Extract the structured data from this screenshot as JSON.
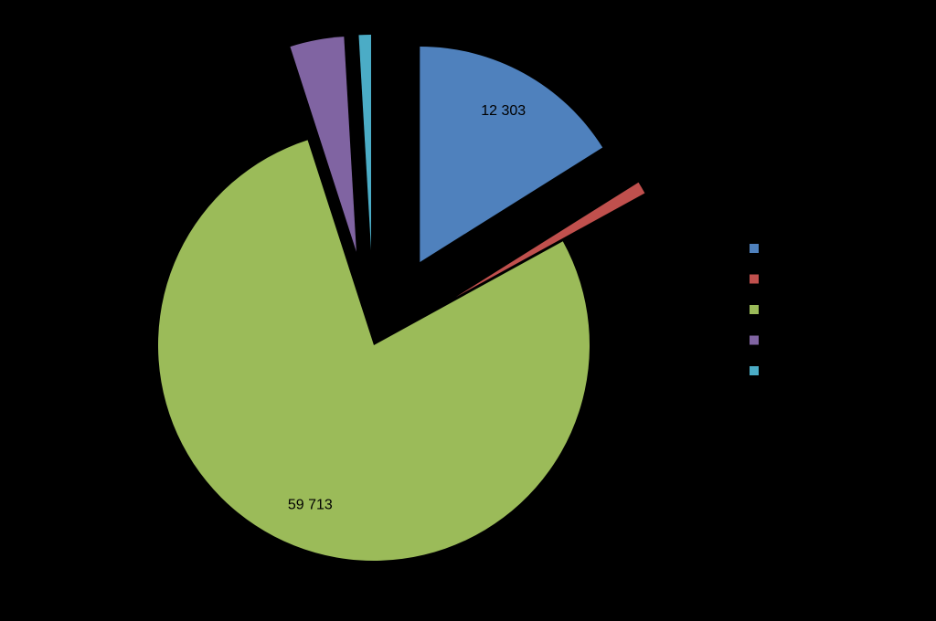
{
  "chart_data": {
    "type": "pie",
    "values": [
      12303,
      700,
      59713,
      3100,
      700
    ],
    "value_labels": [
      "12 303",
      null,
      "59 713",
      null,
      null
    ],
    "colors": [
      "#4f81bd",
      "#c0504d",
      "#9bbb59",
      "#8064a2",
      "#4bacc6"
    ],
    "explode": [
      true,
      true,
      false,
      true,
      true
    ],
    "legend": "right"
  }
}
